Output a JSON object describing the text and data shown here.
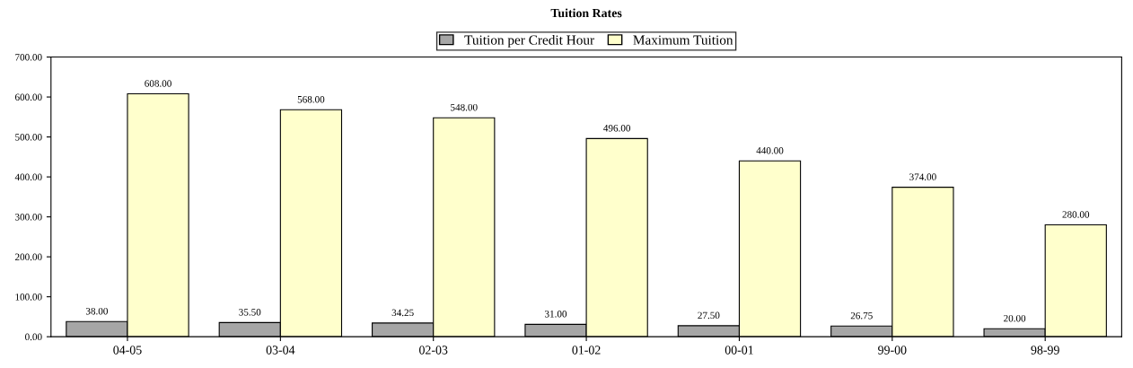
{
  "chart_data": {
    "type": "bar",
    "title": "Tuition Rates",
    "categories": [
      "04-05",
      "03-04",
      "02-03",
      "01-02",
      "00-01",
      "99-00",
      "98-99"
    ],
    "series": [
      {
        "name": "Tuition per Credit Hour",
        "color": "#a6a6a6",
        "values": [
          38,
          35.5,
          34.25,
          31,
          27.5,
          26.75,
          20
        ],
        "value_labels": [
          "38.00",
          "35.50",
          "34.25",
          "31.00",
          "27.50",
          "26.75",
          "20.00"
        ]
      },
      {
        "name": "Maximum Tuition",
        "color": "#ffffcc",
        "values": [
          608,
          568,
          548,
          496,
          440,
          374,
          280
        ],
        "value_labels": [
          "608.00",
          "568.00",
          "548.00",
          "496.00",
          "440.00",
          "374.00",
          "280.00"
        ]
      }
    ],
    "ylim": [
      0,
      700
    ],
    "yticks": [
      {
        "value": 0,
        "label": "0.00"
      },
      {
        "value": 100,
        "label": "100.00"
      },
      {
        "value": 200,
        "label": "200.00"
      },
      {
        "value": 300,
        "label": "300.00"
      },
      {
        "value": 400,
        "label": "400.00"
      },
      {
        "value": 500,
        "label": "500.00"
      },
      {
        "value": 600,
        "label": "600.00"
      },
      {
        "value": 700,
        "label": "700.00"
      }
    ],
    "grid": false,
    "legend": "top"
  }
}
